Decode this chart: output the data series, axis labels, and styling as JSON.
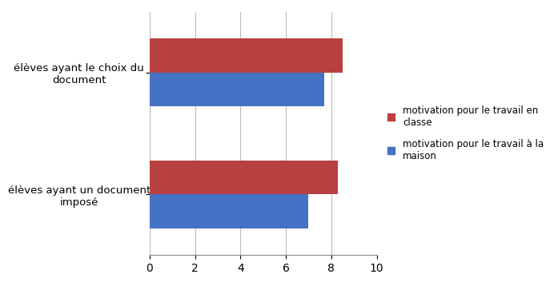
{
  "categories": [
    "élèves ayant un document\nimposé",
    "élèves ayant le choix du\ndocument"
  ],
  "motivation_classe": [
    8.3,
    8.5
  ],
  "motivation_maison": [
    7.0,
    7.7
  ],
  "color_classe": "#b94040",
  "color_maison": "#4472c4",
  "xlim": [
    0,
    10
  ],
  "xticks": [
    0,
    2,
    4,
    6,
    8,
    10
  ],
  "legend_classe": "motivation pour le travail en\nclasse",
  "legend_maison": "motivation pour le travail à la\nmaison",
  "bar_height": 0.28,
  "background_color": "#ffffff"
}
